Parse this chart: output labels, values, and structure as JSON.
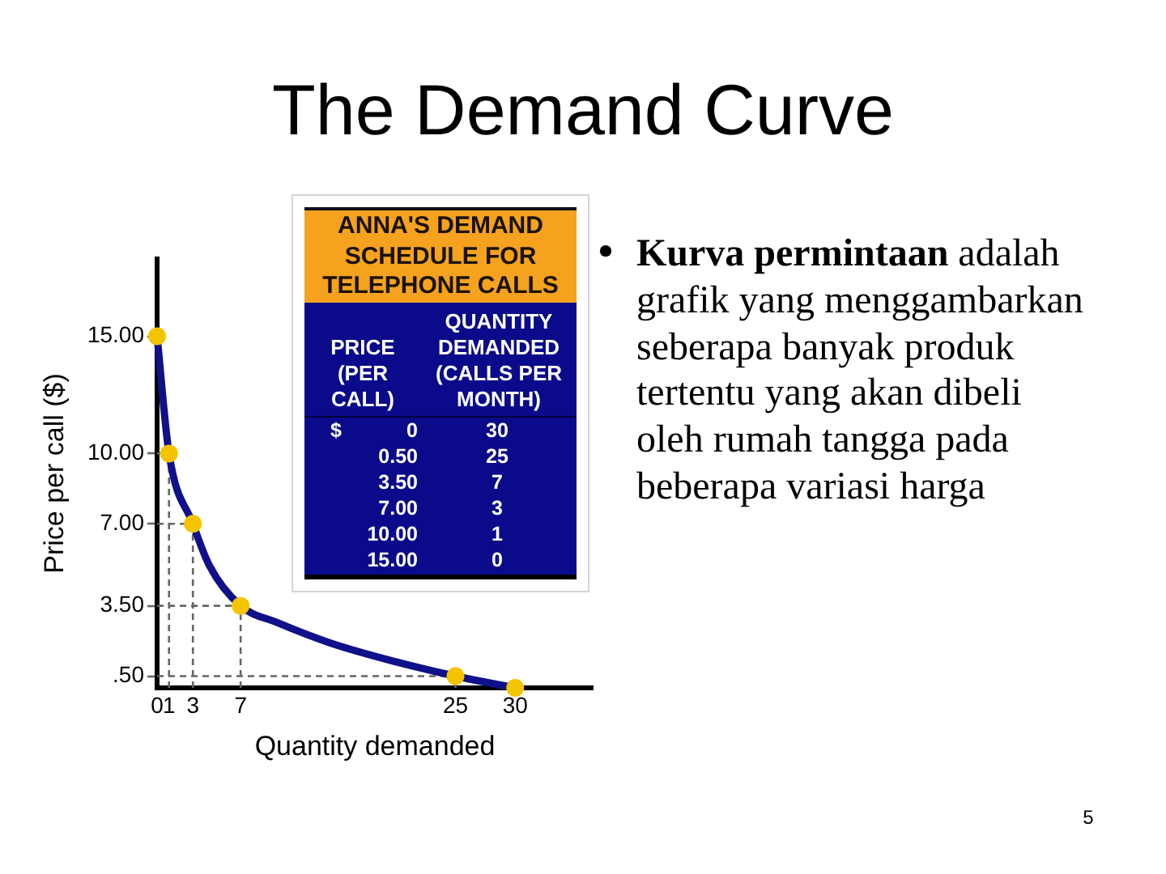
{
  "chart_data": [
    {
      "type": "line",
      "title": "The Demand Curve",
      "xlabel": "Quantity demanded",
      "ylabel": "Price per call ($)",
      "series": [
        {
          "type": "line",
          "color": "#666666",
          "line_style": "dashed",
          "marker": "none",
          "x": [
            0,
            1
          ],
          "values": [
            10,
            10
          ]
        },
        {
          "type": "line",
          "color": "#666666",
          "line_style": "dashed",
          "marker": "none",
          "x": [
            0,
            3
          ],
          "values": [
            7,
            7
          ]
        },
        {
          "type": "line",
          "color": "#666666",
          "line_style": "dashed",
          "marker": "none",
          "x": [
            0,
            7
          ],
          "values": [
            3.5,
            3.5
          ]
        },
        {
          "type": "line",
          "color": "#666666",
          "line_style": "dashed",
          "marker": "none",
          "x": [
            0,
            25
          ],
          "values": [
            0.5,
            0.5
          ]
        },
        {
          "type": "line",
          "color": "#666666",
          "line_style": "dashed",
          "marker": "none",
          "x": [
            1,
            1
          ],
          "values": [
            0,
            10
          ]
        },
        {
          "type": "line",
          "color": "#666666",
          "line_style": "dashed",
          "marker": "none",
          "x": [
            3,
            3
          ],
          "values": [
            0,
            7
          ]
        },
        {
          "type": "line",
          "color": "#666666",
          "line_style": "dashed",
          "marker": "none",
          "x": [
            7,
            7
          ],
          "values": [
            0,
            3.5
          ]
        },
        {
          "type": "line",
          "color": "#666666",
          "line_style": "dashed",
          "marker": "none",
          "x": [
            25,
            25
          ],
          "values": [
            0,
            0.5
          ]
        },
        {
          "color": "#10108a",
          "marker": "none",
          "x": [
            30,
            25,
            20.1,
            14.6,
            10,
            7,
            4.4,
            3,
            1,
            0
          ],
          "values": [
            0,
            0.5,
            1.1,
            1.9,
            2.8,
            3.5,
            5.2,
            7,
            10,
            15
          ]
        },
        {
          "type": "scatter",
          "color": "#f5c400",
          "marker": "circle",
          "x": [
            30,
            25,
            7,
            3,
            1,
            0
          ],
          "values": [
            0,
            0.5,
            3.5,
            7,
            10,
            15
          ]
        }
      ],
      "xlim": [
        0,
        36.5
      ],
      "xticks": [
        0,
        1,
        3,
        7,
        25,
        30
      ],
      "ylim": [
        0,
        18.3
      ],
      "yticks": [
        {
          "value": 0.5,
          "label": ".50"
        },
        {
          "value": 3.5,
          "label": "3.50"
        },
        {
          "value": 7,
          "label": "7.00"
        },
        {
          "value": 10,
          "label": "10.00"
        },
        {
          "value": 15,
          "label": "15.00"
        }
      ],
      "legend": false,
      "annotations": [
        "•",
        "Kurva permintaan",
        "adalah grafik yang menggambarkan seberapa banyak produk tertentu yang akan dibeli oleh rumah tangga pada beberapa variasi harga",
        "5"
      ]
    },
    {
      "type": "other",
      "title": "ANNA'S DEMAND SCHEDULE FOR TELEPHONE CALLS",
      "annotations": [
        "PRICE (PER CALL)",
        "QUANTITY DEMANDED (CALLS PER MONTH)",
        "$ 0",
        "30",
        "0.50",
        "25",
        "3.50",
        "7",
        "7.00",
        "3",
        "10.00",
        "1",
        "15.00",
        "0"
      ]
    }
  ]
}
